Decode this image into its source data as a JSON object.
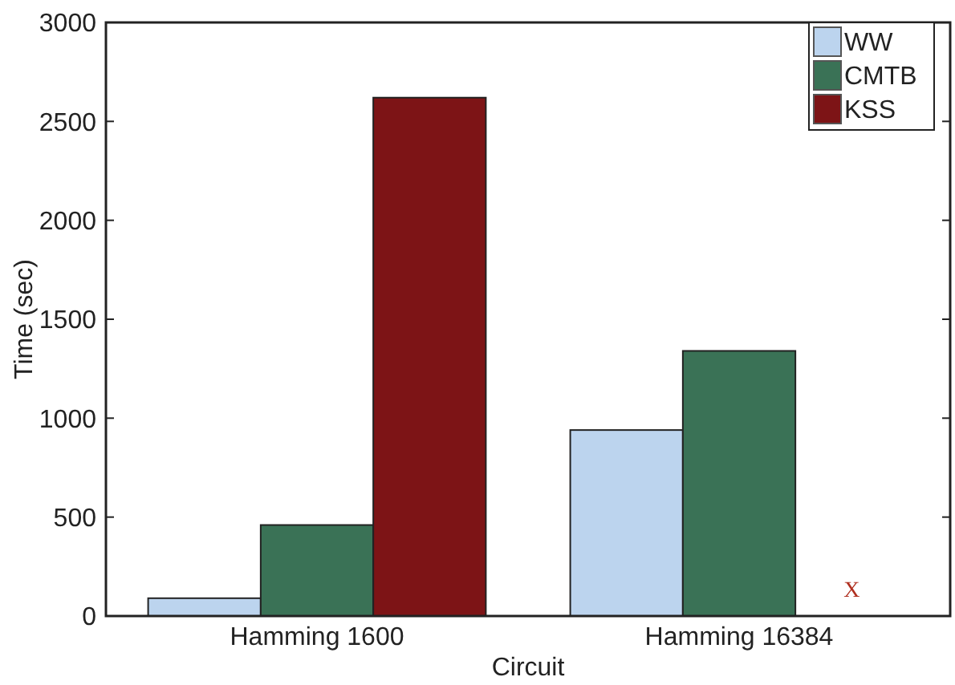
{
  "chart_data": {
    "type": "bar",
    "xlabel": "Circuit",
    "ylabel": "Time (sec)",
    "categories": [
      "Hamming 1600",
      "Hamming 16384"
    ],
    "series": [
      {
        "name": "WW",
        "color": "#bcd4ee",
        "values": [
          90,
          940
        ]
      },
      {
        "name": "CMTB",
        "color": "#3a7256",
        "values": [
          460,
          1340
        ]
      },
      {
        "name": "KSS",
        "color": "#7d1416",
        "values": [
          2620,
          0
        ]
      }
    ],
    "ylim": [
      0,
      3000
    ],
    "yticks": [
      0,
      500,
      1000,
      1500,
      2000,
      2500,
      3000
    ],
    "annotations": [
      "X"
    ],
    "legend": "top right",
    "grid": false
  }
}
